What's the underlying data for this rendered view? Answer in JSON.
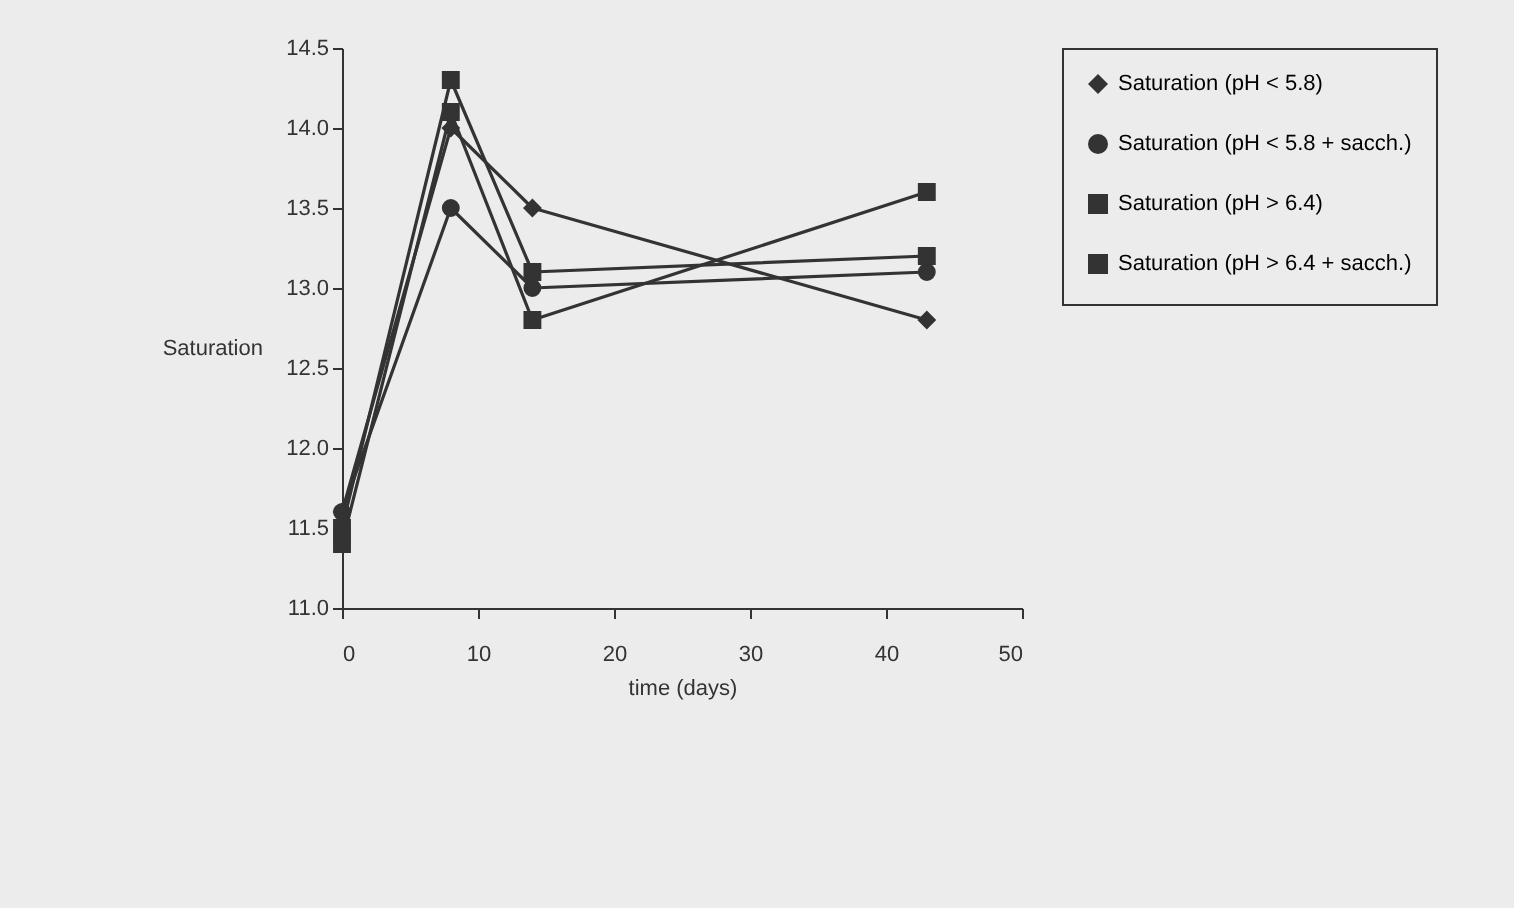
{
  "chart_data": {
    "type": "line",
    "xlabel": "time (days)",
    "ylabel": "Saturation",
    "xlim": [
      0,
      50
    ],
    "xticks": [
      0,
      10,
      20,
      30,
      40,
      50
    ],
    "ylim": [
      11.0,
      14.5
    ],
    "yticks": [
      {
        "value": 11,
        "label": "11.0"
      },
      11.5,
      {
        "value": 12,
        "label": "12.0"
      },
      12.5,
      {
        "value": 13,
        "label": "13.0"
      },
      13.5,
      {
        "value": 14,
        "label": "14.0"
      },
      14.5
    ],
    "grid": false,
    "legend": "right",
    "line_style": "solid",
    "x": [
      0,
      8,
      14,
      43
    ],
    "series": [
      {
        "name": "Saturation (pH < 5.8)",
        "color": "#333333",
        "marker": "diamond",
        "values": [
          11.6,
          14.0,
          13.5,
          12.8
        ]
      },
      {
        "name": "Saturation (pH < 5.8 + sacch.)",
        "color": "#333333",
        "marker": "circle",
        "values": [
          11.6,
          13.5,
          13.0,
          13.1
        ]
      },
      {
        "name": "Saturation (pH > 6.4)",
        "color": "#333333",
        "marker": "square",
        "values": [
          11.4,
          14.1,
          12.8,
          13.6
        ]
      },
      {
        "name": "Saturation (pH > 6.4 + sacch.)",
        "color": "#333333",
        "marker": "square",
        "values": [
          11.5,
          14.3,
          13.1,
          13.2
        ]
      }
    ]
  }
}
